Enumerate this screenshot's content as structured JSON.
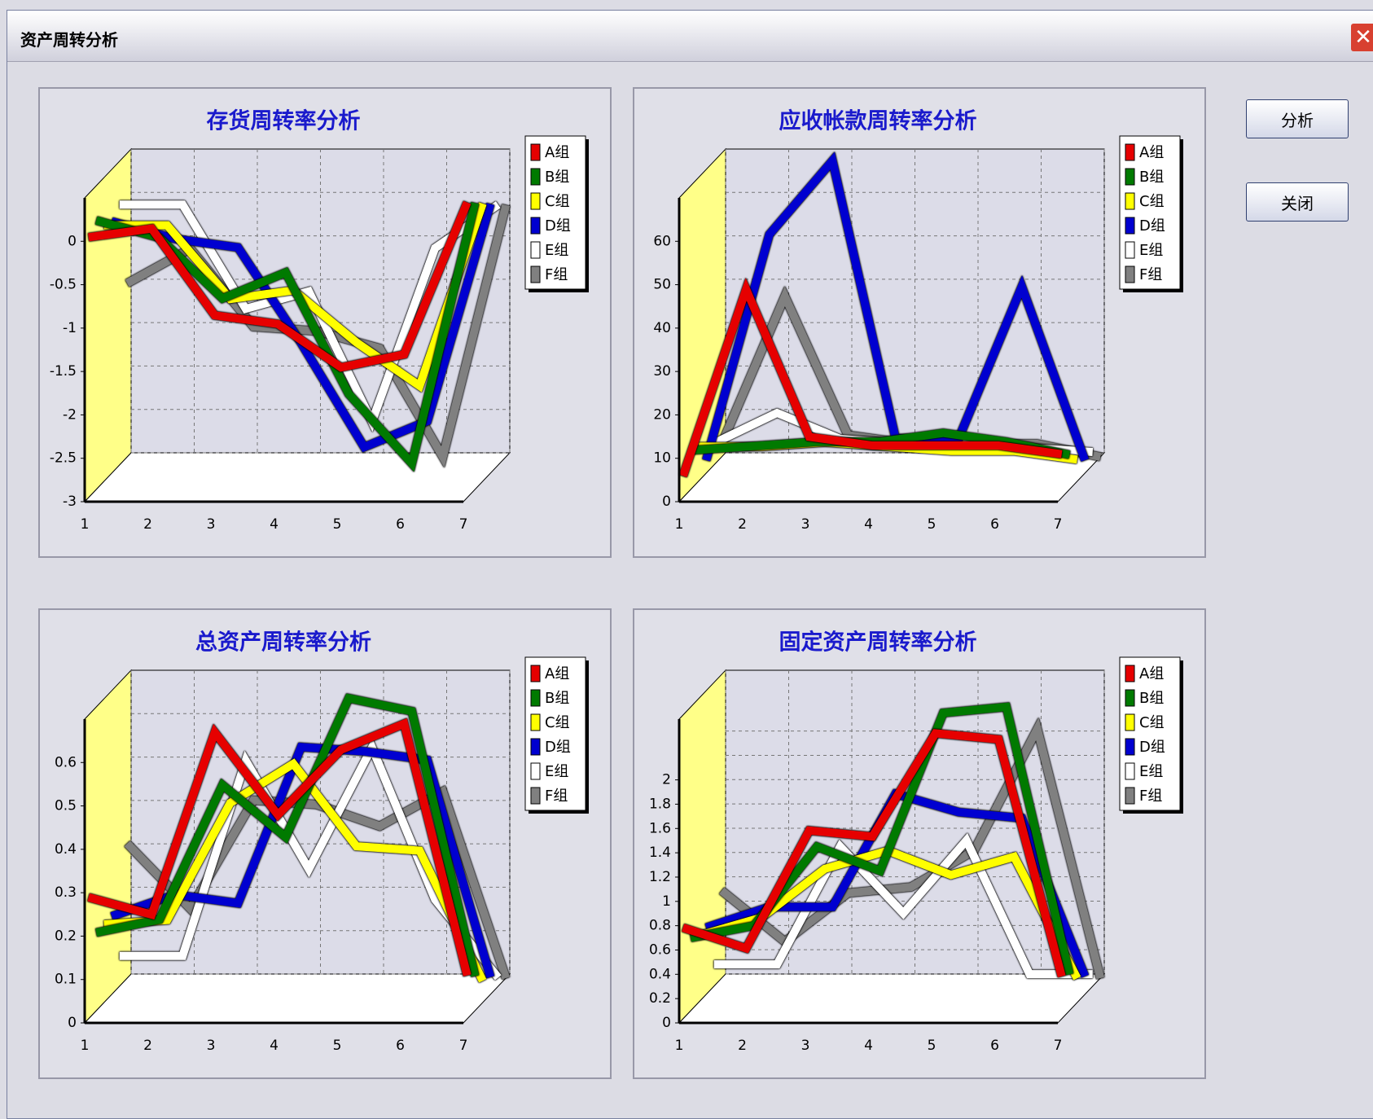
{
  "window_title": "资产周转分析",
  "buttons": [
    "分析",
    "关闭"
  ],
  "chart_data": [
    {
      "type": "line",
      "title": "存货周转率分析",
      "categories": [
        "1",
        "2",
        "3",
        "4",
        "5",
        "6",
        "7"
      ],
      "ylim": [
        -3,
        0.5
      ],
      "yticks": [
        0,
        -0.5,
        -1,
        -1.5,
        -2,
        -2.5,
        -3
      ],
      "grid": true,
      "series": [
        {
          "name": "A组",
          "color": "#e60000",
          "values": [
            0,
            0.1,
            -0.9,
            -1,
            -1.5,
            -1.35,
            0.4
          ]
        },
        {
          "name": "B组",
          "color": "#007a00",
          "values": [
            0.1,
            -0.1,
            -0.8,
            -0.5,
            -1.9,
            -2.7,
            0.3
          ]
        },
        {
          "name": "C组",
          "color": "#ffff00",
          "values": [
            -0.05,
            -0.05,
            -0.9,
            -0.8,
            -1.4,
            -1.9,
            0.2
          ]
        },
        {
          "name": "D组",
          "color": "#0000d0",
          "values": [
            -0.1,
            -0.3,
            -0.4,
            -1.5,
            -2.7,
            -2.4,
            0.1
          ]
        },
        {
          "name": "E组",
          "color": "#ffffff",
          "values": [
            0,
            0,
            -1.2,
            -1,
            -2.5,
            -0.5,
            0
          ]
        },
        {
          "name": "F组",
          "color": "#808080",
          "values": [
            -1,
            -0.6,
            -1.5,
            -1.55,
            -1.75,
            -3,
            -0.1
          ]
        }
      ]
    },
    {
      "type": "line",
      "title": "应收帐款周转率分析",
      "categories": [
        "1",
        "2",
        "3",
        "4",
        "5",
        "6",
        "7"
      ],
      "ylim": [
        0,
        70
      ],
      "yticks": [
        0,
        10,
        20,
        30,
        40,
        50,
        60
      ],
      "grid": true,
      "series": [
        {
          "name": "A组",
          "color": "#e60000",
          "values": [
            5,
            48,
            14,
            12,
            12,
            12,
            10
          ]
        },
        {
          "name": "B组",
          "color": "#007a00",
          "values": [
            9,
            10,
            11,
            11,
            13,
            11,
            8
          ]
        },
        {
          "name": "C组",
          "color": "#ffff00",
          "values": [
            8,
            8,
            9,
            8,
            7,
            7,
            5
          ]
        },
        {
          "name": "D组",
          "color": "#0000d0",
          "values": [
            3,
            55,
            72,
            8,
            8,
            43,
            3
          ]
        },
        {
          "name": "E组",
          "color": "#ffffff",
          "values": [
            5,
            12,
            6,
            5,
            5,
            4,
            3
          ]
        },
        {
          "name": "F组",
          "color": "#808080",
          "values": [
            3,
            37,
            5,
            3,
            3,
            3,
            0
          ]
        }
      ]
    },
    {
      "type": "line",
      "title": "总资产周转率分析",
      "categories": [
        "1",
        "2",
        "3",
        "4",
        "5",
        "6",
        "7"
      ],
      "ylim": [
        0,
        0.7
      ],
      "yticks": [
        0,
        0.1,
        0.2,
        0.3,
        0.4,
        0.5,
        0.6
      ],
      "grid": true,
      "series": [
        {
          "name": "A组",
          "color": "#e60000",
          "values": [
            0.28,
            0.24,
            0.66,
            0.47,
            0.62,
            0.68,
            0.1
          ]
        },
        {
          "name": "B组",
          "color": "#007a00",
          "values": [
            0.18,
            0.21,
            0.52,
            0.4,
            0.72,
            0.69,
            0.08
          ]
        },
        {
          "name": "C组",
          "color": "#ffff00",
          "values": [
            0.18,
            0.19,
            0.46,
            0.55,
            0.36,
            0.35,
            0.05
          ]
        },
        {
          "name": "D组",
          "color": "#0000d0",
          "values": [
            0.18,
            0.23,
            0.21,
            0.57,
            0.56,
            0.54,
            0.04
          ]
        },
        {
          "name": "E组",
          "color": "#ffffff",
          "values": [
            0.07,
            0.07,
            0.52,
            0.27,
            0.55,
            0.2,
            0.02
          ]
        },
        {
          "name": "F组",
          "color": "#808080",
          "values": [
            0.31,
            0.16,
            0.41,
            0.4,
            0.35,
            0.43,
            0
          ]
        }
      ]
    },
    {
      "type": "line",
      "title": "固定资产周转率分析",
      "categories": [
        "1",
        "2",
        "3",
        "4",
        "5",
        "6",
        "7"
      ],
      "ylim": [
        0,
        2.5
      ],
      "yticks": [
        0,
        0.2,
        0.4,
        0.6,
        0.8,
        1,
        1.2,
        1.4,
        1.6,
        1.8,
        2
      ],
      "grid": true,
      "series": [
        {
          "name": "A组",
          "color": "#e60000",
          "values": [
            0.75,
            0.58,
            1.55,
            1.5,
            2.35,
            2.3,
            0.35
          ]
        },
        {
          "name": "B组",
          "color": "#007a00",
          "values": [
            0.6,
            0.7,
            1.35,
            1.15,
            2.45,
            2.5,
            0.3
          ]
        },
        {
          "name": "C组",
          "color": "#ffff00",
          "values": [
            0.55,
            0.7,
            1.1,
            1.25,
            1.05,
            1.2,
            0.2
          ]
        },
        {
          "name": "D组",
          "color": "#0000d0",
          "values": [
            0.55,
            0.72,
            0.72,
            1.65,
            1.5,
            1.45,
            0.15
          ]
        },
        {
          "name": "E组",
          "color": "#ffffff",
          "values": [
            0.18,
            0.18,
            1.15,
            0.6,
            1.2,
            0.1,
            0.1
          ]
        },
        {
          "name": "F组",
          "color": "#808080",
          "values": [
            0.72,
            0.3,
            0.7,
            0.75,
            1.05,
            2.05,
            0
          ]
        }
      ]
    }
  ]
}
